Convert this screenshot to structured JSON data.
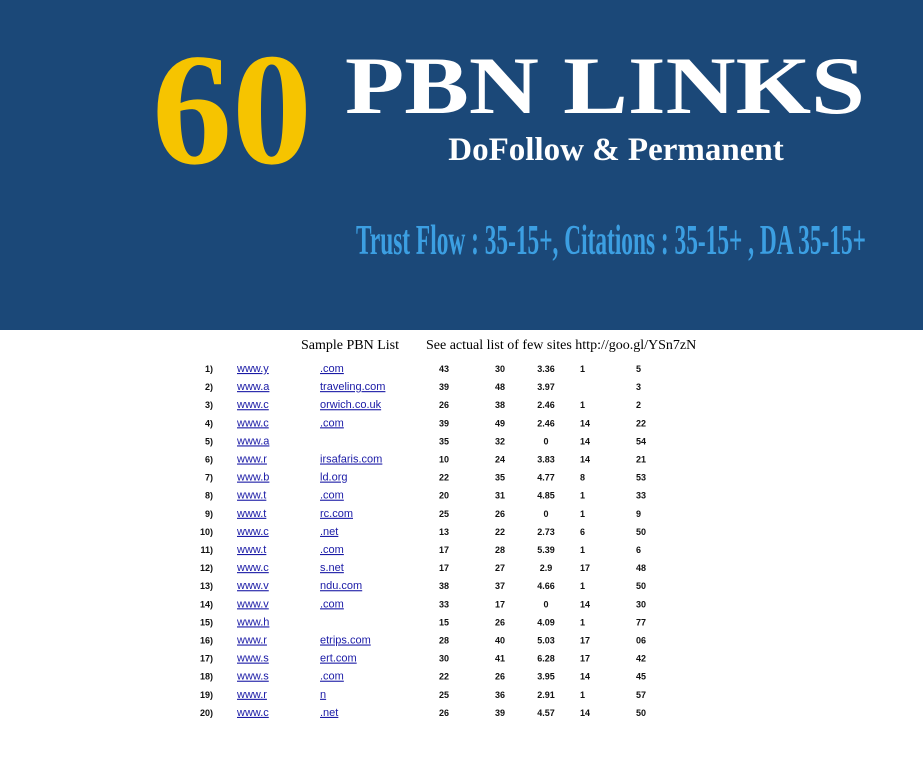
{
  "header": {
    "number": "60",
    "title": "PBN LINKS",
    "subtitle": "DoFollow & Permanent",
    "metrics": "Trust Flow : 35-15+, Citations : 35-15+ , DA 35-15+"
  },
  "caption": {
    "label": "Sample PBN List",
    "note": "See actual list of few sites http://goo.gl/YSn7zN"
  },
  "table": {
    "rows": [
      [
        "1)",
        "www.y",
        ".com",
        "43",
        "30",
        "3.36",
        "1",
        "5"
      ],
      [
        "2)",
        "www.a",
        "traveling.com",
        "39",
        "48",
        "3.97",
        null,
        "3"
      ],
      [
        "3)",
        "www.c",
        "orwich.co.uk",
        "26",
        "38",
        "2.46",
        "1",
        "2"
      ],
      [
        "4)",
        "www.c",
        ".com",
        "39",
        "49",
        "2.46",
        "14",
        "22"
      ],
      [
        "5)",
        "www.a",
        null,
        "35",
        "32",
        "0",
        "14",
        "54"
      ],
      [
        "6)",
        "www.r",
        "irsafaris.com",
        "10",
        "24",
        "3.83",
        "14",
        "21"
      ],
      [
        "7)",
        "www.b",
        "ld.org",
        "22",
        "35",
        "4.77",
        "8",
        "53"
      ],
      [
        "8)",
        "www.t",
        ".com",
        "20",
        "31",
        "4.85",
        "1",
        "33"
      ],
      [
        "9)",
        "www.t",
        "rc.com",
        "25",
        "26",
        "0",
        "1",
        "9"
      ],
      [
        "10)",
        "www.c",
        ".net",
        "13",
        "22",
        "2.73",
        "6",
        "50"
      ],
      [
        "11)",
        "www.t",
        ".com",
        "17",
        "28",
        "5.39",
        "1",
        "6"
      ],
      [
        "12)",
        "www.c",
        "s.net",
        "17",
        "27",
        "2.9",
        "17",
        "48"
      ],
      [
        "13)",
        "www.v",
        "ndu.com",
        "38",
        "37",
        "4.66",
        "1",
        "50"
      ],
      [
        "14)",
        "www.v",
        ".com",
        "33",
        "17",
        "0",
        "14",
        "30"
      ],
      [
        "15)",
        "www.h",
        null,
        "15",
        "26",
        "4.09",
        "1",
        "77"
      ],
      [
        "16)",
        "www.r",
        "etrips.com",
        "28",
        "40",
        "5.03",
        "17",
        "06"
      ],
      [
        "17)",
        "www.s",
        "ert.com",
        "30",
        "41",
        "6.28",
        "17",
        "42"
      ],
      [
        "18)",
        "www.s",
        ".com",
        "22",
        "26",
        "3.95",
        "14",
        "45"
      ],
      [
        "19)",
        "www.r",
        "n",
        "25",
        "36",
        "2.91",
        "1",
        "57"
      ],
      [
        "20)",
        "www.c",
        ".net",
        "26",
        "39",
        "4.57",
        "14",
        "50"
      ]
    ]
  }
}
